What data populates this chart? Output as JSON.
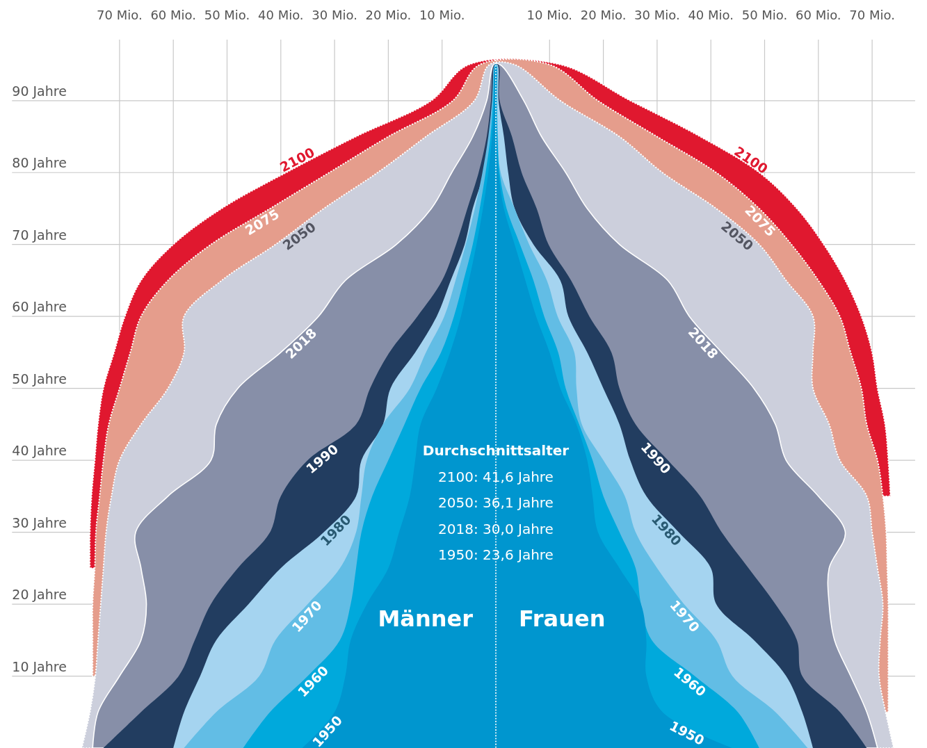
{
  "chart_data": {
    "type": "area",
    "orientation": "horizontal",
    "grid": true,
    "legend": false,
    "marker": "none",
    "x": [
      0,
      5,
      10,
      15,
      20,
      25,
      30,
      35,
      40,
      45,
      50,
      55,
      60,
      65,
      70,
      75,
      80,
      85,
      90,
      95,
      95,
      90,
      85,
      80,
      75,
      70,
      65,
      60,
      55,
      50,
      45,
      40,
      35,
      30,
      25,
      20,
      15,
      10,
      5,
      0
    ],
    "xlim": [
      -90,
      78
    ],
    "ylim": [
      0,
      98
    ],
    "xticks": [
      {
        "value": -70,
        "label": "70 Mio."
      },
      {
        "value": -60,
        "label": "60 Mio."
      },
      {
        "value": -50,
        "label": "50 Mio."
      },
      {
        "value": -40,
        "label": "40 Mio."
      },
      {
        "value": -30,
        "label": "30 Mio."
      },
      {
        "value": -20,
        "label": "20 Mio."
      },
      {
        "value": -10,
        "label": "10 Mio."
      },
      {
        "value": 10,
        "label": "10 Mio."
      },
      {
        "value": 20,
        "label": "20 Mio."
      },
      {
        "value": 30,
        "label": "30 Mio."
      },
      {
        "value": 40,
        "label": "40 Mio."
      },
      {
        "value": 50,
        "label": "50 Mio."
      },
      {
        "value": 60,
        "label": "60 Mio."
      },
      {
        "value": 70,
        "label": "70 Mio."
      }
    ],
    "yticks": [
      {
        "value": 10,
        "label": "10 Jahre"
      },
      {
        "value": 20,
        "label": "20 Jahre"
      },
      {
        "value": 30,
        "label": "30 Jahre"
      },
      {
        "value": 40,
        "label": "40 Jahre"
      },
      {
        "value": 50,
        "label": "50 Jahre"
      },
      {
        "value": 60,
        "label": "60 Jahre"
      },
      {
        "value": 70,
        "label": "70 Jahre"
      },
      {
        "value": 80,
        "label": "80 Jahre"
      },
      {
        "value": 90,
        "label": "90 Jahre"
      }
    ],
    "series": [
      {
        "name": "2100",
        "color": "#e0182f",
        "line_style": "dotted",
        "values": [
          null,
          null,
          null,
          null,
          null,
          -75.5,
          -75.5,
          -75.2,
          -74.6,
          -74,
          -73,
          -71,
          -69,
          -66,
          -60,
          -51,
          -39,
          -26,
          -12,
          -5,
          12,
          25,
          38,
          49,
          56,
          61,
          65,
          68,
          70,
          71,
          72.4,
          73,
          73.4,
          null,
          null,
          null,
          null,
          null,
          null,
          null
        ]
      },
      {
        "name": "2075",
        "color": "#e59d8c",
        "line_style": "dotted",
        "values": [
          null,
          null,
          -75,
          -75,
          -75,
          -74.6,
          -74.4,
          -73.7,
          -73,
          -72,
          -70,
          -68,
          -66,
          -61,
          -53,
          -42,
          -31,
          -20,
          -8,
          -3,
          10,
          19,
          30,
          41,
          49,
          55,
          60,
          64,
          66,
          68,
          69,
          71,
          72,
          72.6,
          72.8,
          73,
          73,
          73,
          73,
          null
        ]
      },
      {
        "name": "2050",
        "color": "#cccfdc",
        "line_style": "dotted",
        "values": [
          -77,
          -75.5,
          -74.5,
          -74,
          -73.5,
          -73,
          -72.5,
          -71.5,
          -70,
          -66,
          -61,
          -58,
          -58,
          -51,
          -41,
          -32,
          -22,
          -13,
          -4,
          -1.2,
          3.5,
          12,
          23,
          31,
          41,
          49,
          54,
          59,
          59,
          59,
          62,
          64,
          69,
          70,
          71,
          72,
          71.5,
          71.3,
          72.5,
          74
        ]
      },
      {
        "name": "2018",
        "color": "#878fa8",
        "line_style": "solid",
        "values": [
          -75,
          -74,
          -70,
          -66,
          -65,
          -66,
          -67,
          -61,
          -53,
          -52,
          -48,
          -40,
          -33,
          -28,
          -18.5,
          -12,
          -8.2,
          -4.3,
          -1.7,
          -0.4,
          0.8,
          5.2,
          8.5,
          13,
          17,
          23,
          32,
          36,
          42,
          48,
          52,
          54,
          60,
          65,
          62,
          62,
          63,
          66,
          69,
          71
        ]
      },
      {
        "name": "1990",
        "color": "#223d60",
        "values": [
          -73,
          -66,
          -59,
          -56,
          -53,
          -48,
          -42,
          -40,
          -35,
          -26,
          -23.4,
          -19.8,
          -14.6,
          -10,
          -7.4,
          -5.3,
          -3.2,
          -1.7,
          -0.9,
          -0.3,
          0.5,
          0.7,
          3,
          4.8,
          7.6,
          9.8,
          14,
          17.4,
          21.5,
          23,
          26,
          32,
          38,
          42,
          47,
          52,
          56,
          57,
          64,
          69
        ]
      },
      {
        "name": "1980",
        "color": "#a5d4f0",
        "values": [
          -60,
          -58,
          -55,
          -52,
          -46,
          -40,
          -32,
          -26,
          -25,
          -21,
          -19.6,
          -15,
          -11,
          -8.4,
          -5.8,
          -4.3,
          -2.2,
          -1.2,
          -0.5,
          -0.2,
          0.3,
          0.5,
          1.5,
          2.3,
          3.5,
          7,
          12,
          13.5,
          17,
          20,
          23,
          25,
          28,
          34,
          40,
          41,
          48,
          54,
          57,
          59
        ]
      },
      {
        "name": "1970",
        "color": "#62bde5",
        "values": [
          -58,
          -52,
          -44,
          -41,
          -35,
          -29,
          -26,
          -25,
          -24,
          -21,
          -16,
          -13,
          -9.6,
          -7.5,
          -5.6,
          -3.9,
          -2.5,
          -1.4,
          -0.7,
          -0.2,
          0.1,
          0.2,
          0.4,
          0.9,
          3.5,
          6.2,
          9.5,
          11.5,
          14.6,
          15,
          16,
          20,
          24,
          26,
          30,
          35,
          41,
          44,
          52,
          58
        ]
      },
      {
        "name": "1960",
        "color": "#00a9dc",
        "values": [
          -47,
          -42,
          -35,
          -29,
          -27,
          -26,
          -25,
          -23,
          -20,
          -17,
          -14,
          -10.2,
          -7.8,
          -6,
          -4.3,
          -3,
          -1.9,
          -1,
          -0.5,
          -0.1,
          0.1,
          0.2,
          0.3,
          0.7,
          2,
          4.5,
          7,
          9,
          11.6,
          13,
          15.5,
          18,
          20,
          23,
          26,
          27,
          29,
          37,
          45,
          49
        ]
      },
      {
        "name": "1950",
        "color": "#0096cf",
        "values": [
          -36,
          -30,
          -28,
          -27,
          -24,
          -20,
          -18,
          -16,
          -15,
          -14,
          -11,
          -8.5,
          -6.5,
          -5,
          -3.6,
          -2.4,
          -1.4,
          -0.7,
          -0.3,
          -0.1,
          0.1,
          0.1,
          0.2,
          0.5,
          1.5,
          3.5,
          5.5,
          7.5,
          10,
          12,
          15,
          17,
          18,
          19,
          23,
          27,
          28,
          28,
          31,
          44
        ]
      }
    ],
    "ref_lines": [
      {
        "axis": "x",
        "value": 0,
        "color": "#ffffff",
        "line_style": "dotted"
      }
    ],
    "annotations": [
      "Durchschnittsalter",
      "2100: 41,6 Jahre",
      "2050: 36,1 Jahre",
      "2018: 30,0 Jahre",
      "1950: 23,6 Jahre",
      "Männer",
      "Frauen"
    ]
  }
}
